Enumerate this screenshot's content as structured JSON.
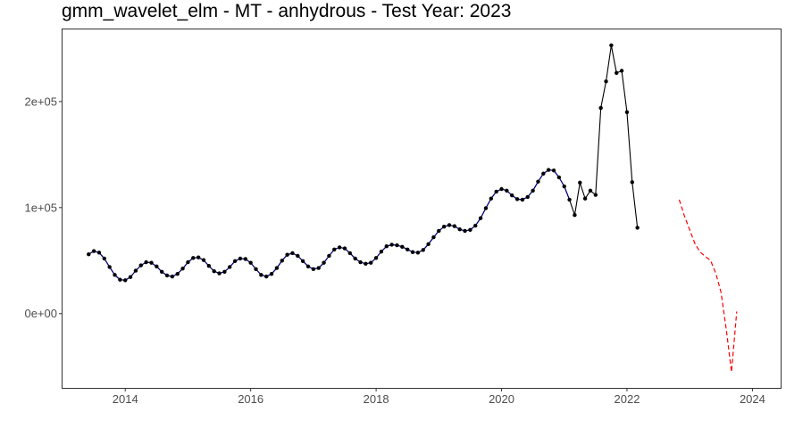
{
  "chart_data": {
    "type": "line",
    "title": "gmm_wavelet_elm - MT - anhydrous - Test Year: 2023",
    "xlabel": "",
    "ylabel": "",
    "xlim": [
      2013.0,
      2024.45
    ],
    "ylim": [
      -70000,
      268000
    ],
    "x_ticks": [
      {
        "value": 2014,
        "label": "2014"
      },
      {
        "value": 2016,
        "label": "2016"
      },
      {
        "value": 2018,
        "label": "2018"
      },
      {
        "value": 2020,
        "label": "2020"
      },
      {
        "value": 2022,
        "label": "2022"
      },
      {
        "value": 2024,
        "label": "2024"
      }
    ],
    "y_ticks": [
      {
        "value": 0,
        "label": "0e+00"
      },
      {
        "value": 100000,
        "label": "1e+05"
      },
      {
        "value": 200000,
        "label": "2e+05"
      }
    ],
    "grid": false,
    "legend": "none",
    "colors": {
      "actual": "#000000",
      "fitted": "#00008b",
      "forecast": "#ff0000"
    },
    "series": [
      {
        "style": "solid-points",
        "color": "#000000",
        "x_start": 2013.4167,
        "x_step": 0.08333,
        "values": [
          56000,
          59000,
          57500,
          52000,
          44000,
          36500,
          32000,
          31500,
          34500,
          40500,
          45500,
          48500,
          48000,
          44500,
          39500,
          36000,
          35000,
          37500,
          42500,
          48500,
          52500,
          53000,
          50500,
          45000,
          40000,
          38000,
          39500,
          44000,
          49500,
          52000,
          51500,
          48000,
          42000,
          36500,
          35000,
          37500,
          43000,
          50000,
          55500,
          57000,
          54500,
          49500,
          44500,
          42000,
          43000,
          48000,
          54500,
          60500,
          62500,
          61500,
          57000,
          52000,
          48500,
          47000,
          48000,
          52500,
          58500,
          63500,
          65000,
          64500,
          63000,
          60500,
          58000,
          57500,
          60000,
          65500,
          72000,
          78000,
          82000,
          83500,
          82500,
          79500,
          78000,
          79000,
          83000,
          90000,
          99500,
          108500,
          115000,
          117500,
          116000,
          111500,
          108000,
          107500,
          110000,
          116000,
          124500,
          132000,
          135500,
          135000,
          128500,
          120000,
          107500,
          93000,
          123500,
          108500,
          116000,
          112000,
          194000,
          219000,
          253000,
          227000,
          229000,
          190000,
          124000,
          81000
        ]
      },
      {
        "style": "solid",
        "color": "#00008b",
        "x_start": 2013.4167,
        "x_step": 0.08333,
        "values": [
          56000,
          59000,
          57500,
          52000,
          44000,
          36500,
          32000,
          31500,
          34500,
          40500,
          45500,
          48500,
          48000,
          44500,
          39500,
          36000,
          35000,
          37500,
          42500,
          48500,
          52500,
          53000,
          50500,
          45000,
          40000,
          38000,
          39500,
          44000,
          49500,
          52000,
          51500,
          48000,
          42000,
          36500,
          35000,
          37500,
          43000,
          50000,
          55500,
          57000,
          54500,
          49500,
          44500,
          42000,
          43000,
          48000,
          54500,
          60500,
          62500,
          61500,
          57000,
          52000,
          48500,
          47000,
          48000,
          52500,
          58500,
          63500,
          65000,
          64500,
          63000,
          60500,
          58000,
          57500,
          60000,
          65500,
          72000,
          78000,
          82000,
          83500,
          82500,
          79500,
          78000,
          79000,
          83000,
          90000,
          99500,
          108500,
          115000,
          117500,
          116000,
          111500,
          108000,
          107500,
          110000,
          116000,
          124500,
          132000,
          135500,
          135000,
          128500,
          120000,
          107500
        ]
      },
      {
        "style": "dashed",
        "color": "#ff0000",
        "x_start": 2022.8333,
        "x_step": 0.08333,
        "values": [
          107500,
          92000,
          79000,
          66000,
          58000,
          54000,
          50000,
          38000,
          20000,
          -15000,
          -55000,
          2000
        ]
      }
    ]
  }
}
